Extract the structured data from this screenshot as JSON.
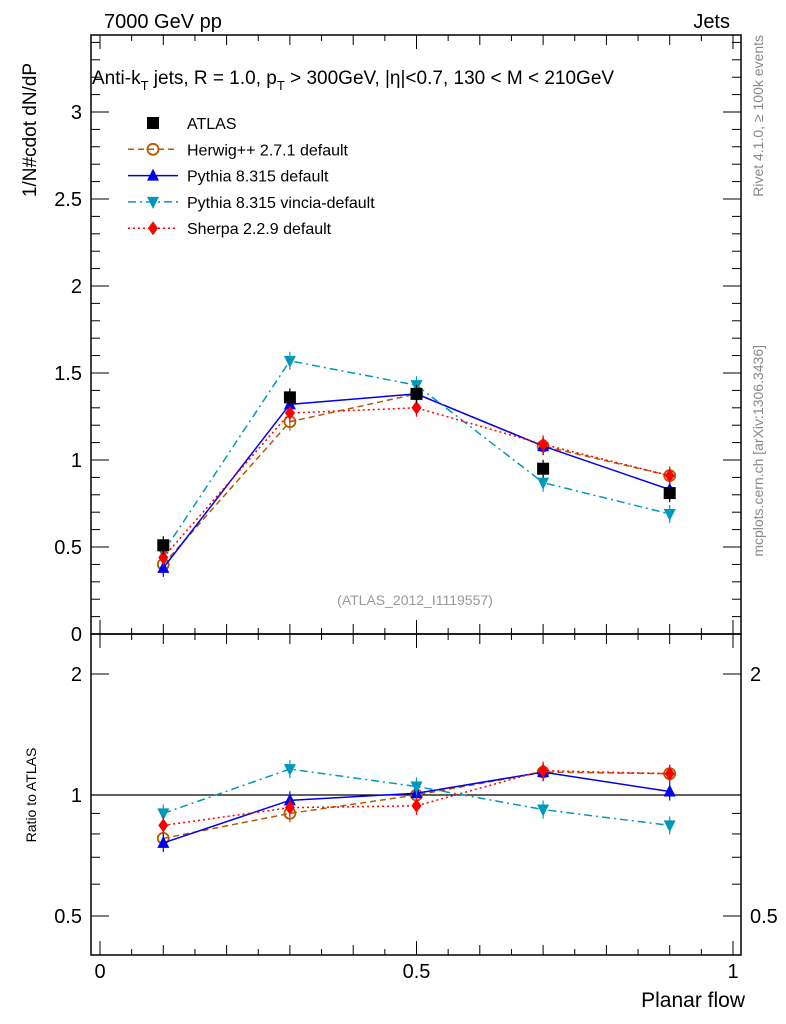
{
  "header": {
    "left": "7000 GeV pp",
    "right": "Jets"
  },
  "side_text": {
    "rivet": "Rivet 4.1.0, ≥ 100k events",
    "mcplots": "mcplots.cern.ch [arXiv:1306.3436]"
  },
  "chart_data": [
    {
      "type": "line",
      "title": "Anti-kT jets, R = 1.0, pT > 300GeV, |η|<0.7, 130 < M < 210GeV",
      "title_parts": {
        "a": "Anti-k",
        "a_sub": "T",
        "b": " jets, R = 1.0, p",
        "b_sub": "T",
        "c": " > 300GeV, |η|<0.7, 130 < M < 210GeV"
      },
      "watermark": "(ATLAS_2012_I1119557)",
      "ylabel": "1/N#cdot dN/dP",
      "xlim": [
        0,
        1
      ],
      "ylim": [
        0,
        3.45
      ],
      "yticks": [
        "0",
        "0.5",
        "1",
        "1.5",
        "2",
        "2.5",
        "3"
      ],
      "ytick_values": [
        0,
        0.5,
        1,
        1.5,
        2,
        2.5,
        3
      ],
      "x": [
        0.1,
        0.3,
        0.5,
        0.7,
        0.9
      ],
      "legend_position": "top-left",
      "series": [
        {
          "name": "ATLAS",
          "color": "#000000",
          "marker": "square",
          "line": "none",
          "values": [
            0.51,
            1.36,
            1.38,
            0.95,
            0.81
          ]
        },
        {
          "name": "Herwig++ 2.7.1 default",
          "color": "#b35a00",
          "marker": "open-circle",
          "line": "dashed",
          "values": [
            0.4,
            1.22,
            1.38,
            1.08,
            0.91
          ]
        },
        {
          "name": "Pythia 8.315 default",
          "color": "#0000ee",
          "marker": "triangle-up",
          "line": "solid",
          "values": [
            0.38,
            1.32,
            1.38,
            1.08,
            0.83
          ]
        },
        {
          "name": "Pythia 8.315 vincia-default",
          "color": "#0099bb",
          "marker": "triangle-down",
          "line": "dashdot",
          "values": [
            0.47,
            1.57,
            1.43,
            0.87,
            0.69
          ]
        },
        {
          "name": "Sherpa 2.2.9 default",
          "color": "#ff0000",
          "marker": "diamond",
          "line": "dotted",
          "values": [
            0.44,
            1.27,
            1.3,
            1.09,
            0.91
          ]
        }
      ]
    },
    {
      "type": "line",
      "ylabel": "Ratio to ATLAS",
      "xlabel": "Planar flow",
      "yscale": "log",
      "ylim": [
        0.4,
        2.5
      ],
      "yticks": [
        "0.5",
        "1",
        "2"
      ],
      "ytick_values": [
        0.5,
        1,
        2
      ],
      "xticks": [
        "0",
        "0.5",
        "1"
      ],
      "xtick_values": [
        0,
        0.5,
        1
      ],
      "x": [
        0.1,
        0.3,
        0.5,
        0.7,
        0.9
      ],
      "series": [
        {
          "name": "Herwig++ 2.7.1 default",
          "values": [
            0.78,
            0.9,
            1.0,
            1.14,
            1.13
          ]
        },
        {
          "name": "Pythia 8.315 default",
          "values": [
            0.76,
            0.97,
            1.01,
            1.14,
            1.02
          ]
        },
        {
          "name": "Pythia 8.315 vincia-default",
          "values": [
            0.9,
            1.16,
            1.05,
            0.92,
            0.84
          ]
        },
        {
          "name": "Sherpa 2.2.9 default",
          "values": [
            0.84,
            0.93,
            0.94,
            1.15,
            1.13
          ]
        }
      ]
    }
  ]
}
